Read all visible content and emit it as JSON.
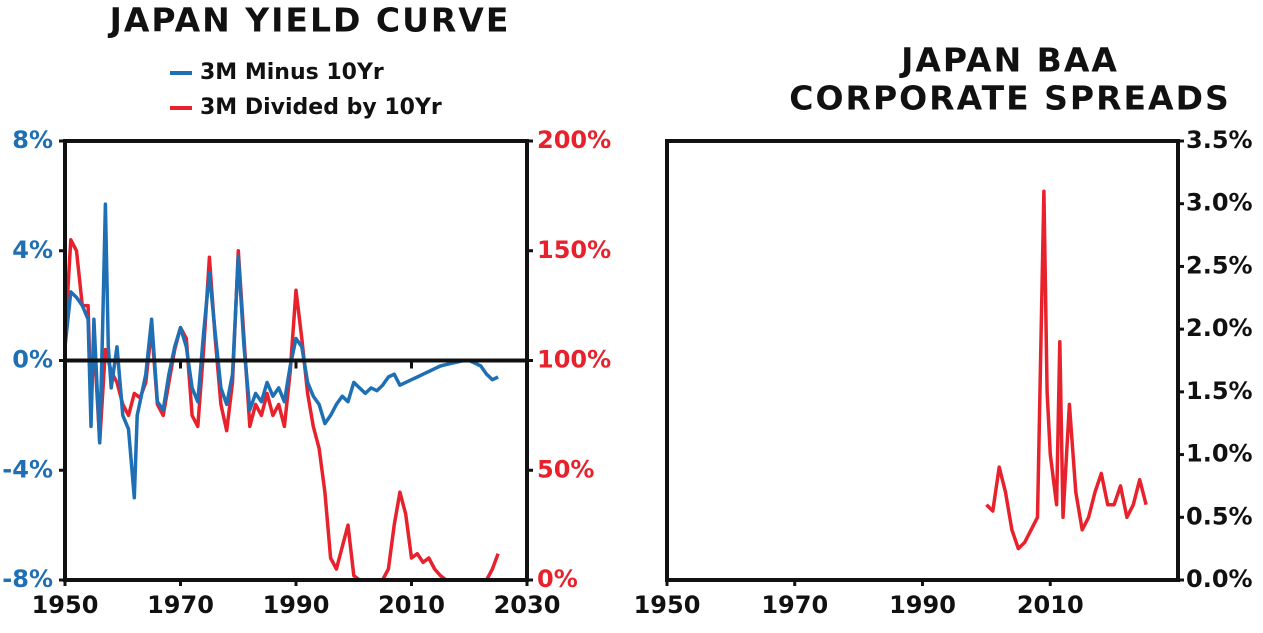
{
  "chart_data": [
    {
      "type": "line",
      "title": "JAPAN YIELD CURVE",
      "zero_line": true,
      "xlim": [
        1950,
        2030
      ],
      "xticks": [
        1950,
        1970,
        1990,
        2010,
        2030
      ],
      "ylim": [
        -8,
        8
      ],
      "yticks": [
        {
          "value": -8,
          "label": "-8%"
        },
        {
          "value": -4,
          "label": "-4%"
        },
        {
          "value": 0,
          "label": "0%"
        },
        {
          "value": 4,
          "label": "4%"
        },
        {
          "value": 8,
          "label": "8%"
        }
      ],
      "y2lim": [
        0,
        200
      ],
      "y2ticks": [
        {
          "value": 0,
          "label": "0%"
        },
        {
          "value": 50,
          "label": "50%"
        },
        {
          "value": 100,
          "label": "100%"
        },
        {
          "value": 150,
          "label": "150%"
        },
        {
          "value": 200,
          "label": "200%"
        }
      ],
      "series": [
        {
          "name": "3M Minus 10Yr",
          "color": "#1f6fb5",
          "axis": "y",
          "x": [
            1950,
            1951,
            1952,
            1953,
            1954,
            1954.5,
            1955,
            1956,
            1956.5,
            1957,
            1957.5,
            1958,
            1959,
            1960,
            1961,
            1962,
            1962.5,
            1963,
            1964,
            1965,
            1966,
            1967,
            1968,
            1969,
            1970,
            1971,
            1972,
            1973,
            1974,
            1975,
            1976,
            1977,
            1978,
            1979,
            1980,
            1981,
            1982,
            1983,
            1984,
            1985,
            1986,
            1987,
            1988,
            1989,
            1990,
            1991,
            1992,
            1993,
            1994,
            1995,
            1996,
            1997,
            1998,
            1999,
            2000,
            2001,
            2002,
            2003,
            2004,
            2005,
            2006,
            2007,
            2008,
            2009,
            2010,
            2011,
            2012,
            2013,
            2014,
            2015,
            2016,
            2017,
            2018,
            2019,
            2020,
            2021,
            2022,
            2023,
            2024,
            2025
          ],
          "values": [
            0.5,
            2.5,
            2.3,
            2.0,
            1.5,
            -2.4,
            1.5,
            -3.0,
            1.0,
            5.7,
            0.5,
            -1.0,
            0.5,
            -2.0,
            -2.5,
            -5.0,
            -2.0,
            -1.5,
            -0.5,
            1.5,
            -1.5,
            -1.8,
            -0.5,
            0.5,
            1.2,
            0.5,
            -1.0,
            -1.5,
            1.0,
            3.2,
            1.0,
            -1.0,
            -1.6,
            -0.5,
            3.8,
            0.5,
            -1.8,
            -1.2,
            -1.5,
            -0.8,
            -1.3,
            -1.0,
            -1.5,
            -0.2,
            0.8,
            0.5,
            -0.8,
            -1.3,
            -1.6,
            -2.3,
            -2.0,
            -1.6,
            -1.3,
            -1.5,
            -0.8,
            -1.0,
            -1.2,
            -1.0,
            -1.1,
            -0.9,
            -0.6,
            -0.5,
            -0.9,
            -0.8,
            -0.7,
            -0.6,
            -0.5,
            -0.4,
            -0.3,
            -0.2,
            -0.15,
            -0.1,
            -0.05,
            0.0,
            0.0,
            -0.1,
            -0.2,
            -0.5,
            -0.7,
            -0.6
          ]
        },
        {
          "name": "3M Divided by 10Yr",
          "color": "#e8222c",
          "axis": "y2",
          "x": [
            1950,
            1951,
            1952,
            1953,
            1954,
            1954.5,
            1955,
            1956,
            1957,
            1958,
            1959,
            1960,
            1961,
            1962,
            1963,
            1964,
            1965,
            1966,
            1967,
            1968,
            1969,
            1970,
            1971,
            1972,
            1973,
            1974,
            1975,
            1976,
            1977,
            1978,
            1979,
            1980,
            1981,
            1982,
            1983,
            1984,
            1985,
            1986,
            1987,
            1988,
            1989,
            1990,
            1991,
            1992,
            1993,
            1994,
            1995,
            1996,
            1997,
            1998,
            1999,
            2000,
            2001,
            2002,
            2003,
            2004,
            2005,
            2006,
            2007,
            2008,
            2009,
            2010,
            2011,
            2012,
            2013,
            2014,
            2015,
            2016,
            2017,
            2018,
            2019,
            2020,
            2021,
            2022,
            2023,
            2024,
            2025
          ],
          "values": [
            110,
            155,
            150,
            125,
            125,
            78,
            110,
            63,
            105,
            95,
            90,
            80,
            75,
            85,
            83,
            90,
            115,
            80,
            75,
            90,
            105,
            115,
            110,
            75,
            70,
            105,
            147,
            110,
            80,
            68,
            90,
            150,
            110,
            70,
            80,
            75,
            85,
            75,
            80,
            70,
            95,
            132,
            110,
            85,
            70,
            60,
            40,
            10,
            5,
            15,
            25,
            2,
            0,
            0,
            0,
            0,
            0,
            5,
            25,
            40,
            30,
            10,
            12,
            8,
            10,
            5,
            2,
            0,
            0,
            0,
            0,
            0,
            0,
            0,
            0,
            5,
            12
          ]
        }
      ]
    },
    {
      "type": "line",
      "title": [
        "JAPAN BAA",
        "CORPORATE SPREADS"
      ],
      "y_axis_side": "right",
      "xlim": [
        1950,
        2030
      ],
      "xticks": [
        1950,
        1970,
        1990,
        2010
      ],
      "ylim": [
        0,
        3.5
      ],
      "yticks": [
        {
          "value": 0,
          "label": "0.0%"
        },
        {
          "value": 0.5,
          "label": "0.5%"
        },
        {
          "value": 1,
          "label": "1.0%"
        },
        {
          "value": 1.5,
          "label": "1.5%"
        },
        {
          "value": 2,
          "label": "2.0%"
        },
        {
          "value": 2.5,
          "label": "2.5%"
        },
        {
          "value": 3,
          "label": "3.0%"
        },
        {
          "value": 3.5,
          "label": "3.5%"
        }
      ],
      "series": [
        {
          "color": "#e8222c",
          "axis": "y",
          "x": [
            2000,
            2001,
            2002,
            2003,
            2004,
            2005,
            2006,
            2007,
            2008,
            2009,
            2009.5,
            2010,
            2011,
            2011.5,
            2012,
            2013,
            2014,
            2015,
            2016,
            2017,
            2018,
            2019,
            2020,
            2021,
            2022,
            2023,
            2024,
            2025
          ],
          "values": [
            0.6,
            0.55,
            0.9,
            0.7,
            0.4,
            0.25,
            0.3,
            0.4,
            0.5,
            3.1,
            1.5,
            1.0,
            0.6,
            1.9,
            0.5,
            1.4,
            0.7,
            0.4,
            0.5,
            0.7,
            0.85,
            0.6,
            0.6,
            0.75,
            0.5,
            0.6,
            0.8,
            0.6
          ]
        }
      ]
    }
  ]
}
